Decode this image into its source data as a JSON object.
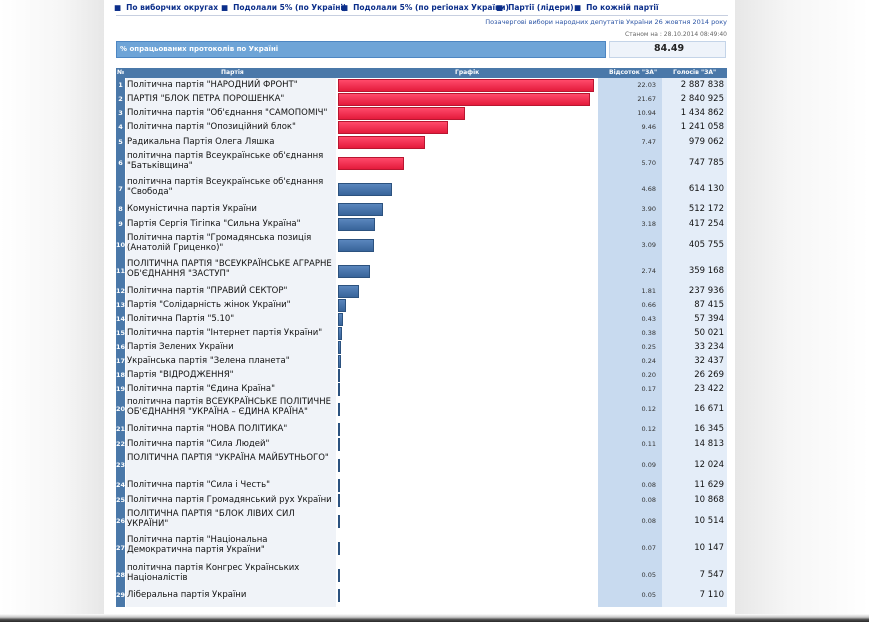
{
  "nav": [
    {
      "label": "По виборчих округах"
    },
    {
      "label": "Подолали 5% (по Україні)"
    },
    {
      "label": "Подолали 5% (по регіонах України)"
    },
    {
      "label": "Партії (лідери)"
    },
    {
      "label": "По кожній партії"
    }
  ],
  "header": {
    "election_title": "Позачергові вибори народних депутатів України 26 жовтня 2014 року",
    "status": "Станом на : 28.10.2014 08:49:40",
    "progress_label": "% опрацьованих протоколів по Україні",
    "progress_value": "84.49"
  },
  "columns": {
    "num": "№",
    "party": "Партія",
    "graph": "Графік",
    "percent": "Відсоток \"ЗА\"",
    "votes": "Голосів \"ЗА\""
  },
  "colors": {
    "above_threshold": "#e8294a",
    "below_threshold": "#4b77ad",
    "header": "#4a78a9"
  },
  "chart_data": {
    "type": "bar",
    "orientation": "horizontal",
    "title": "% опрацьованих протоколів по Україні",
    "xlim": [
      0,
      22.03
    ],
    "rows": [
      {
        "num": "1",
        "party": "Політична партія \"НАРОДНИЙ ФРОНТ\"",
        "percent": "22.03",
        "value": 22.03,
        "votes": "2 887 838",
        "above": true
      },
      {
        "num": "2",
        "party": "ПАРТІЯ \"БЛОК ПЕТРА ПОРОШЕНКА\"",
        "percent": "21.67",
        "value": 21.67,
        "votes": "2 840 925",
        "above": true
      },
      {
        "num": "3",
        "party": "Політична партія \"Об'єднання \"САМОПОМІЧ\"",
        "percent": "10.94",
        "value": 10.94,
        "votes": "1 434 862",
        "above": true
      },
      {
        "num": "4",
        "party": "Політична партія \"Опозиційний блок\"",
        "percent": "9.46",
        "value": 9.46,
        "votes": "1 241 058",
        "above": true
      },
      {
        "num": "5",
        "party": "Радикальна Партія Олега Ляшка",
        "percent": "7.47",
        "value": 7.47,
        "votes": "979 062",
        "above": true
      },
      {
        "num": "6",
        "party": "політична партія Всеукраїнське об'єднання \"Батьківщина\"",
        "percent": "5.70",
        "value": 5.7,
        "votes": "747 785",
        "above": true
      },
      {
        "num": "7",
        "party": "політична партія Всеукраїнське об'єднання \"Свобода\"",
        "percent": "4.68",
        "value": 4.68,
        "votes": "614 130",
        "above": false
      },
      {
        "num": "8",
        "party": "Комуністична партія України",
        "percent": "3.90",
        "value": 3.9,
        "votes": "512 172",
        "above": false
      },
      {
        "num": "9",
        "party": "Партія Сергія Тігіпка \"Сильна Україна\"",
        "percent": "3.18",
        "value": 3.18,
        "votes": "417 254",
        "above": false
      },
      {
        "num": "10",
        "party": "Політична партія \"Громадянська позиція (Анатолій Гриценко)\"",
        "percent": "3.09",
        "value": 3.09,
        "votes": "405 755",
        "above": false
      },
      {
        "num": "11",
        "party": "ПОЛІТИЧНА ПАРТІЯ \"ВСЕУКРАЇНСЬКЕ АГРАРНЕ ОБ'ЄДНАННЯ \"ЗАСТУП\"",
        "percent": "2.74",
        "value": 2.74,
        "votes": "359 168",
        "above": false
      },
      {
        "num": "12",
        "party": "Політична партія \"ПРАВИЙ СЕКТОР\"",
        "percent": "1.81",
        "value": 1.81,
        "votes": "237 936",
        "above": false
      },
      {
        "num": "13",
        "party": "Партія \"Солідарність жінок України\"",
        "percent": "0.66",
        "value": 0.66,
        "votes": "87 415",
        "above": false
      },
      {
        "num": "14",
        "party": "Політична Партія \"5.10\"",
        "percent": "0.43",
        "value": 0.43,
        "votes": "57 394",
        "above": false
      },
      {
        "num": "15",
        "party": "Політична партія \"Інтернет партія України\"",
        "percent": "0.38",
        "value": 0.38,
        "votes": "50 021",
        "above": false
      },
      {
        "num": "16",
        "party": "Партія Зелених України",
        "percent": "0.25",
        "value": 0.25,
        "votes": "33 234",
        "above": false
      },
      {
        "num": "17",
        "party": "Українська партія \"Зелена планета\"",
        "percent": "0.24",
        "value": 0.24,
        "votes": "32 437",
        "above": false
      },
      {
        "num": "18",
        "party": "Партія \"ВІДРОДЖЕННЯ\"",
        "percent": "0.20",
        "value": 0.2,
        "votes": "26 269",
        "above": false
      },
      {
        "num": "19",
        "party": "Політична партія \"Єдина Країна\"",
        "percent": "0.17",
        "value": 0.17,
        "votes": "23 422",
        "above": false
      },
      {
        "num": "20",
        "party": "політична партія ВСЕУКРАЇНСЬКЕ ПОЛІТИЧНЕ ОБ'ЄДНАННЯ \"УКРАЇНА – ЄДИНА КРАЇНА\"",
        "percent": "0.12",
        "value": 0.12,
        "votes": "16 671",
        "above": false
      },
      {
        "num": "21",
        "party": "Політична партія \"НОВА ПОЛІТИКА\"",
        "percent": "0.12",
        "value": 0.12,
        "votes": "16 345",
        "above": false
      },
      {
        "num": "22",
        "party": "Політична партія \"Сила Людей\"",
        "percent": "0.11",
        "value": 0.11,
        "votes": "14 813",
        "above": false
      },
      {
        "num": "23",
        "party": "ПОЛІТИЧНА ПАРТІЯ \"УКРАЇНА МАЙБУТНЬОГО\"",
        "percent": "0.09",
        "value": 0.09,
        "votes": "12 024",
        "above": false
      },
      {
        "num": "24",
        "party": "Політична партія \"Сила і Честь\"",
        "percent": "0.08",
        "value": 0.08,
        "votes": "11 629",
        "above": false
      },
      {
        "num": "25",
        "party": "Політична партія Громадянський рух України",
        "percent": "0.08",
        "value": 0.08,
        "votes": "10 868",
        "above": false
      },
      {
        "num": "26",
        "party": "ПОЛІТИЧНА ПАРТІЯ \"БЛОК ЛІВИХ СИЛ УКРАЇНИ\"",
        "percent": "0.08",
        "value": 0.08,
        "votes": "10 514",
        "above": false
      },
      {
        "num": "27",
        "party": "Політична партія \"Національна Демократична партія України\"",
        "percent": "0.07",
        "value": 0.07,
        "votes": "10 147",
        "above": false
      },
      {
        "num": "28",
        "party": "політична партія Конгрес Українських Націоналістів",
        "percent": "0.05",
        "value": 0.05,
        "votes": "7 547",
        "above": false
      },
      {
        "num": "29",
        "party": "Ліберальна партія України",
        "percent": "0.05",
        "value": 0.05,
        "votes": "7 110",
        "above": false
      }
    ]
  }
}
